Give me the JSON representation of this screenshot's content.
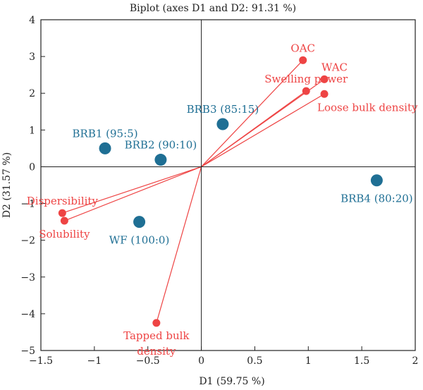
{
  "chart_data": {
    "type": "scatter",
    "title": "Biplot (axes D1 and D2: 91.31 %)",
    "xlabel": "D1 (59.75 %)",
    "ylabel": "D2 (31.57 %)",
    "xlim": [
      -1.5,
      2
    ],
    "ylim": [
      -5,
      4
    ],
    "xticks": [
      -1.5,
      -1,
      -0.5,
      0,
      0.5,
      1,
      1.5,
      2
    ],
    "yticks": [
      -5,
      -4,
      -3,
      -2,
      -1,
      0,
      1,
      2,
      3,
      4
    ],
    "xtick_labels": [
      "−1.5",
      "−1",
      "−0.5",
      "0",
      "0.5",
      "1",
      "1.5",
      "2"
    ],
    "ytick_labels": [
      "−5",
      "−4",
      "−3",
      "−2",
      "−1",
      "0",
      "1",
      "2",
      "3",
      "4"
    ],
    "grid": false,
    "reference_lines": [
      "x=0",
      "y=0"
    ],
    "colors": {
      "observations": "#1f6f94",
      "variables": "#ee4444",
      "axes": "#222222"
    },
    "observations": [
      {
        "label": "BRB1 (95:5)",
        "x": -0.9,
        "y": 0.5,
        "label_pos": "above"
      },
      {
        "label": "BRB2 (90:10)",
        "x": -0.38,
        "y": 0.19,
        "label_pos": "above"
      },
      {
        "label": "BRB3 (85:15)",
        "x": 0.2,
        "y": 1.16,
        "label_pos": "above"
      },
      {
        "label": "BRB4 (80:20)",
        "x": 1.64,
        "y": -0.37,
        "label_pos": "below"
      },
      {
        "label": "WF (100:0)",
        "x": -0.58,
        "y": -1.5,
        "label_pos": "below"
      }
    ],
    "variables": [
      {
        "label": "OAC",
        "x": 0.95,
        "y": 2.9,
        "label_pos": "above"
      },
      {
        "label": "WAC",
        "x": 1.15,
        "y": 2.38,
        "label_pos": "above-right"
      },
      {
        "label": "Swelling power",
        "x": 0.98,
        "y": 2.06,
        "label_pos": "above"
      },
      {
        "label": "Loose bulk density",
        "x": 1.15,
        "y": 1.98,
        "label_pos": "below-right"
      },
      {
        "label": "Dispersibility",
        "x": -1.3,
        "y": -1.26,
        "label_pos": "above"
      },
      {
        "label": "Solubility",
        "x": -1.28,
        "y": -1.47,
        "label_pos": "below"
      },
      {
        "label": "Tapped bulk density",
        "x": -0.42,
        "y": -4.25,
        "label_pos": "below",
        "label_lines": [
          "Tapped bulk",
          "density"
        ]
      }
    ]
  }
}
